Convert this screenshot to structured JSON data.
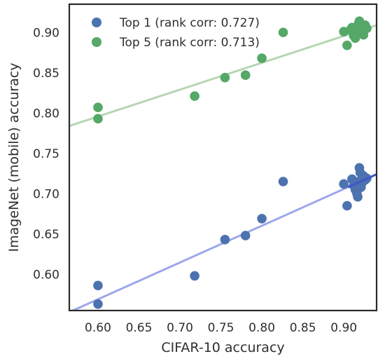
{
  "chart_data": {
    "type": "scatter",
    "xlabel": "CIFAR-10 accuracy",
    "ylabel": "ImageNet (mobile) accuracy",
    "xlim": [
      0.565,
      0.94
    ],
    "ylim": [
      0.555,
      0.935
    ],
    "xticks": [
      "0.60",
      "0.65",
      "0.70",
      "0.75",
      "0.80",
      "0.85",
      "0.90"
    ],
    "yticks": [
      "0.60",
      "0.65",
      "0.70",
      "0.75",
      "0.80",
      "0.85",
      "0.90"
    ],
    "grid": false,
    "legend_position": "top-left",
    "series": [
      {
        "name": "Top 1 (rank corr: 0.727)",
        "color": "#4c72b0",
        "trend_color": "#9da7ec",
        "trend_color_right": "#3f57c7",
        "trend_line": {
          "x": [
            0.565,
            0.94
          ],
          "y": [
            0.553,
            0.724
          ]
        },
        "points": [
          {
            "x": 0.6,
            "y": 0.586
          },
          {
            "x": 0.6,
            "y": 0.563
          },
          {
            "x": 0.718,
            "y": 0.598
          },
          {
            "x": 0.755,
            "y": 0.643
          },
          {
            "x": 0.78,
            "y": 0.648
          },
          {
            "x": 0.8,
            "y": 0.669
          },
          {
            "x": 0.826,
            "y": 0.715
          },
          {
            "x": 0.9,
            "y": 0.712
          },
          {
            "x": 0.904,
            "y": 0.685
          },
          {
            "x": 0.91,
            "y": 0.718
          },
          {
            "x": 0.912,
            "y": 0.71
          },
          {
            "x": 0.914,
            "y": 0.705
          },
          {
            "x": 0.916,
            "y": 0.7
          },
          {
            "x": 0.917,
            "y": 0.696
          },
          {
            "x": 0.918,
            "y": 0.715
          },
          {
            "x": 0.919,
            "y": 0.732
          },
          {
            "x": 0.92,
            "y": 0.726
          },
          {
            "x": 0.921,
            "y": 0.708
          },
          {
            "x": 0.922,
            "y": 0.713
          },
          {
            "x": 0.924,
            "y": 0.722
          },
          {
            "x": 0.926,
            "y": 0.717
          },
          {
            "x": 0.928,
            "y": 0.719
          }
        ]
      },
      {
        "name": "Top 5 (rank corr: 0.713)",
        "color": "#55a868",
        "trend_color": "#b5d6b2",
        "trend_line": {
          "x": [
            0.565,
            0.94
          ],
          "y": [
            0.784,
            0.909
          ]
        },
        "points": [
          {
            "x": 0.6,
            "y": 0.807
          },
          {
            "x": 0.6,
            "y": 0.793
          },
          {
            "x": 0.718,
            "y": 0.821
          },
          {
            "x": 0.755,
            "y": 0.844
          },
          {
            "x": 0.78,
            "y": 0.847
          },
          {
            "x": 0.8,
            "y": 0.868
          },
          {
            "x": 0.826,
            "y": 0.9
          },
          {
            "x": 0.9,
            "y": 0.901
          },
          {
            "x": 0.904,
            "y": 0.884
          },
          {
            "x": 0.908,
            "y": 0.903
          },
          {
            "x": 0.91,
            "y": 0.906
          },
          {
            "x": 0.912,
            "y": 0.896
          },
          {
            "x": 0.914,
            "y": 0.893
          },
          {
            "x": 0.916,
            "y": 0.898
          },
          {
            "x": 0.918,
            "y": 0.911
          },
          {
            "x": 0.919,
            "y": 0.914
          },
          {
            "x": 0.92,
            "y": 0.902
          },
          {
            "x": 0.922,
            "y": 0.908
          },
          {
            "x": 0.924,
            "y": 0.897
          },
          {
            "x": 0.926,
            "y": 0.909
          },
          {
            "x": 0.928,
            "y": 0.905
          }
        ]
      }
    ]
  }
}
